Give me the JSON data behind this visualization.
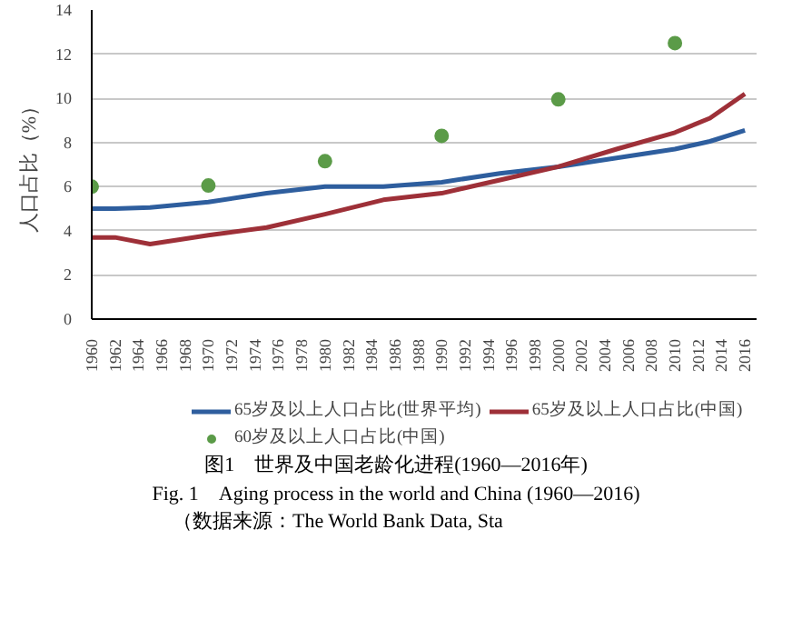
{
  "chart_data": {
    "type": "line",
    "ylabel": "人口占比（%）",
    "x": [
      1960,
      1962,
      1965,
      1970,
      1975,
      1980,
      1985,
      1990,
      1995,
      2000,
      2005,
      2010,
      2013,
      2016
    ],
    "xlim": [
      1960,
      2017
    ],
    "xticks": [
      1960,
      1962,
      1964,
      1966,
      1968,
      1970,
      1972,
      1974,
      1976,
      1978,
      1980,
      1982,
      1984,
      1986,
      1988,
      1990,
      1992,
      1994,
      1996,
      1998,
      2000,
      2002,
      2004,
      2006,
      2008,
      2010,
      2012,
      2014,
      2016
    ],
    "ylim": [
      0,
      14
    ],
    "yticks": [
      0,
      2,
      4,
      6,
      8,
      10,
      12,
      14
    ],
    "grid": "y",
    "legend": "bottom",
    "series": [
      {
        "name": "65岁及以上人口占比(世界平均)",
        "color": "#2e5e9e",
        "values": [
          5.0,
          5.0,
          5.05,
          5.3,
          5.7,
          6.0,
          6.0,
          6.2,
          6.6,
          6.9,
          7.3,
          7.7,
          8.05,
          8.55
        ]
      },
      {
        "name": "65岁及以上人口占比(中国)",
        "color": "#9e3038",
        "values": [
          3.7,
          3.7,
          3.4,
          3.8,
          4.15,
          4.75,
          5.4,
          5.7,
          6.3,
          6.9,
          7.7,
          8.45,
          9.1,
          10.2
        ]
      },
      {
        "name": "60岁及以上人口占比(中国)",
        "type": "scatter",
        "marker": "circle",
        "color": "#5b9b48",
        "x": [
          1960,
          1970,
          1980,
          1990,
          2000,
          2010
        ],
        "values": [
          6.0,
          6.05,
          7.15,
          8.3,
          9.95,
          12.5
        ]
      }
    ],
    "annotations": [
      "图1　世界及中国老龄化进程(1960—2016年)",
      "Fig. 1　Aging process in the world and China (1960—2016)",
      "（数据来源：The World Bank Data, Sta"
    ]
  }
}
